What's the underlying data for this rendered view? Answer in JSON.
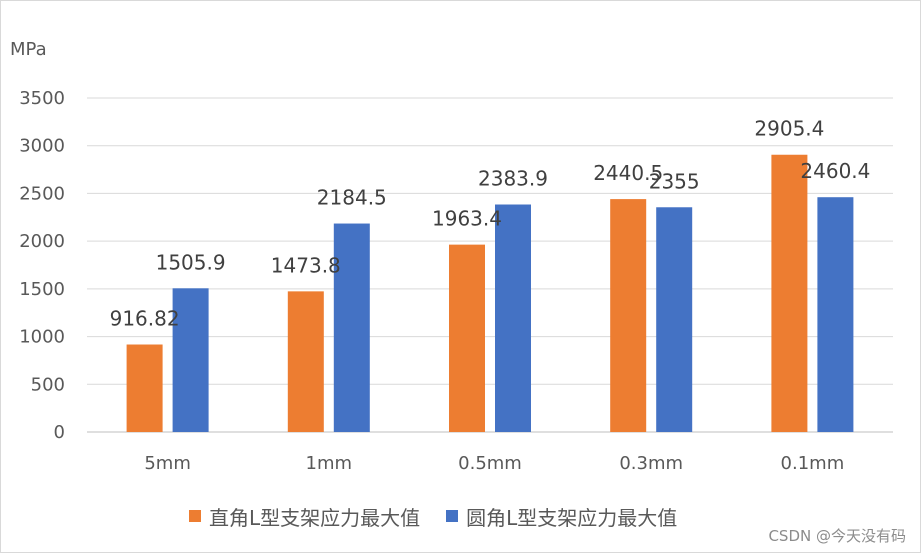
{
  "chart_data": {
    "type": "bar",
    "ylabel": "MPa",
    "ylim": [
      0,
      3500
    ],
    "yticks": [
      0,
      500,
      1000,
      1500,
      2000,
      2500,
      3000,
      3500
    ],
    "grid": true,
    "legend_position": "bottom",
    "categories": [
      "5mm",
      "1mm",
      "0.5mm",
      "0.3mm",
      "0.1mm"
    ],
    "series": [
      {
        "name": "直角L型支架应力最大值",
        "color": "#ED7D31",
        "values": [
          916.82,
          1473.8,
          1963.4,
          2440.5,
          2905.4
        ],
        "labels": [
          "916.82",
          "1473.8",
          "1963.4",
          "2440.5",
          "2905.4"
        ]
      },
      {
        "name": "圆角L型支架应力最大值",
        "color": "#4472C4",
        "values": [
          1505.9,
          2184.5,
          2383.9,
          2355,
          2460.4
        ],
        "labels": [
          "1505.9",
          "2184.5",
          "2383.9",
          "2355",
          "2460.4"
        ]
      }
    ]
  },
  "watermark": "CSDN @今天没有码"
}
